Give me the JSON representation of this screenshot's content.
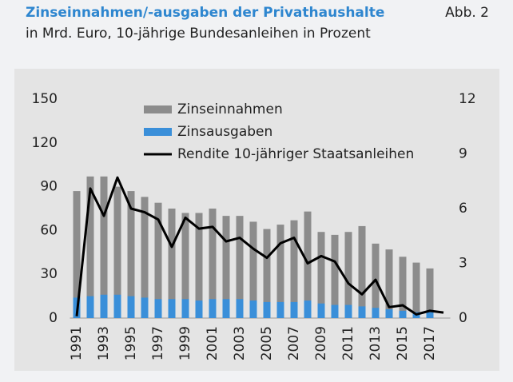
{
  "header": {
    "title": "Zinseinnahmen/-ausgaben der Privathaushalte",
    "figure": "Abb. 2",
    "subtitle": "in Mrd. Euro, 10-jährige Bundesanleihen in Prozent"
  },
  "chart_data": {
    "type": "bar",
    "categories": [
      "1991",
      null,
      "1993",
      null,
      "1995",
      null,
      "1997",
      null,
      "1999",
      null,
      "2001",
      null,
      "2003",
      null,
      "2005",
      null,
      "2007",
      null,
      "2009",
      null,
      "2011",
      null,
      "2013",
      null,
      "2015",
      null,
      "2017",
      null
    ],
    "series": [
      {
        "name": "Zinseinnahmen",
        "color": "#8c8c8c",
        "values": [
          87,
          97,
          97,
          90,
          87,
          83,
          79,
          75,
          72,
          72,
          75,
          70,
          70,
          66,
          61,
          64,
          67,
          73,
          59,
          57,
          59,
          63,
          51,
          47,
          42,
          38,
          34,
          null
        ]
      },
      {
        "name": "Zinsausgaben",
        "color": "#3a8fd9",
        "values": [
          14,
          15,
          16,
          16,
          15,
          14,
          13,
          13,
          13,
          12,
          13,
          13,
          13,
          12,
          11,
          11,
          11,
          12,
          10,
          9,
          9,
          8,
          7,
          6,
          5,
          4,
          4,
          null
        ]
      },
      {
        "name": "Rendite 10-jähriger Staatsanleihen",
        "color": "#000000",
        "type": "line",
        "axis": "y2",
        "values": [
          0.1,
          7.1,
          5.6,
          7.7,
          6.0,
          5.8,
          5.4,
          3.9,
          5.5,
          4.9,
          5.0,
          4.2,
          4.4,
          3.8,
          3.3,
          4.1,
          4.4,
          3.0,
          3.4,
          3.1,
          1.9,
          1.3,
          2.1,
          0.6,
          0.7,
          0.2,
          0.4,
          0.3
        ]
      }
    ],
    "ylim": [
      0,
      150
    ],
    "yticks": [
      0,
      30,
      60,
      90,
      120,
      150
    ],
    "y2lim": [
      0,
      12
    ],
    "y2ticks": [
      0,
      3,
      6,
      9,
      12
    ],
    "legend": "top"
  }
}
